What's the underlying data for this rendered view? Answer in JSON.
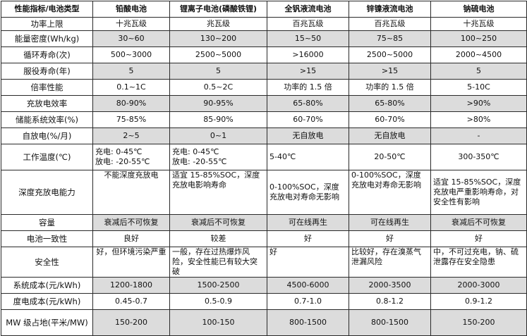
{
  "header": [
    "性能指标/电池类型",
    "铅酸电池",
    "锂离子电池(磷酸铁锂)",
    "全钒液流电池",
    "锌镍液流电池",
    "钠硫电池"
  ],
  "rows": [
    {
      "label": "功率上限",
      "values": [
        "十兆瓦级",
        "兆瓦级",
        "百兆瓦级",
        "百兆瓦级",
        "十兆瓦级"
      ]
    },
    {
      "label": "能量密度(Wh/kg)",
      "values": [
        "30~60",
        "130~200",
        "15~50",
        "75~85",
        "100~250"
      ]
    },
    {
      "label": "循环寿命(次)",
      "values": [
        "500~3000",
        "2500~5000",
        ">16000",
        "2500~5000",
        "2000~4500"
      ]
    },
    {
      "label": "服役寿命(年)",
      "values": [
        "5",
        "5",
        ">15",
        ">15",
        "5"
      ]
    },
    {
      "label": "倍率性能",
      "values": [
        "0.1~1C",
        "0.5~2C",
        "功率的 1.5 倍",
        "功率的 1.5 倍",
        "5-10C"
      ]
    },
    {
      "label": "充放电效率",
      "values": [
        "80-90%",
        "90-95%",
        "65-80%",
        "65-80%",
        ">90%"
      ]
    },
    {
      "label": "储能系统效率(%)",
      "values": [
        "75-85%",
        "85-90%",
        "60-70%",
        "60-70%",
        ">80%"
      ]
    },
    {
      "label": "自放电(%/月)",
      "values": [
        "2~5",
        "0~1",
        "无自放电",
        "无自放电",
        "-"
      ]
    },
    {
      "label": "工作温度(℃)",
      "values": [
        "充电: 0-45℃\n放电: -20-55℃",
        "充电: 0-45℃\n放电: -20-55℃",
        "5-40℃",
        "20-50℃",
        "300-350℃"
      ]
    },
    {
      "label": "深度充放电能力",
      "values": [
        "不能深度充放电",
        "适宜 15-85%SOC，深度充放电影响寿命",
        "0-100%SOC，深度充放电对寿命无影响",
        "0-100%SOC，深度充放电对寿命无影响",
        "适宜 15-85%SOC，深度充放电严重影响寿命，对安全性有影响"
      ]
    },
    {
      "label": "容量",
      "values": [
        "衰减后不可恢复",
        "衰减后不可恢复",
        "可在线再生",
        "可在线再生",
        "衰减后不可恢复"
      ]
    },
    {
      "label": "电池一致性",
      "values": [
        "良好",
        "较差",
        "好",
        "好",
        "好"
      ]
    },
    {
      "label": "安全性",
      "values": [
        "好，但环境污染严重",
        "一般，存在过热爆炸风险，安全性能已有较大突破",
        "好",
        "比较好，存在溴蒸气泄漏风险",
        "中，不可过充电，钠、硫泄露存在安全隐患"
      ]
    },
    {
      "label": "系统成本(元/kWh)",
      "values": [
        "1200-1800",
        "1500-2500",
        "4500-6000",
        "2000-3500",
        "2000-3000"
      ]
    },
    {
      "label": "度电成本(元/kWh)",
      "values": [
        "0.45-0.7",
        "0.5-0.9",
        "0.7-1.0",
        "0.8-1.2",
        "0.9-1.2"
      ]
    },
    {
      "label": "MW 级占地(平米/MW)",
      "values": [
        "150-200",
        "100-150",
        "800-1500",
        "800-1500",
        "150-200"
      ]
    }
  ]
}
